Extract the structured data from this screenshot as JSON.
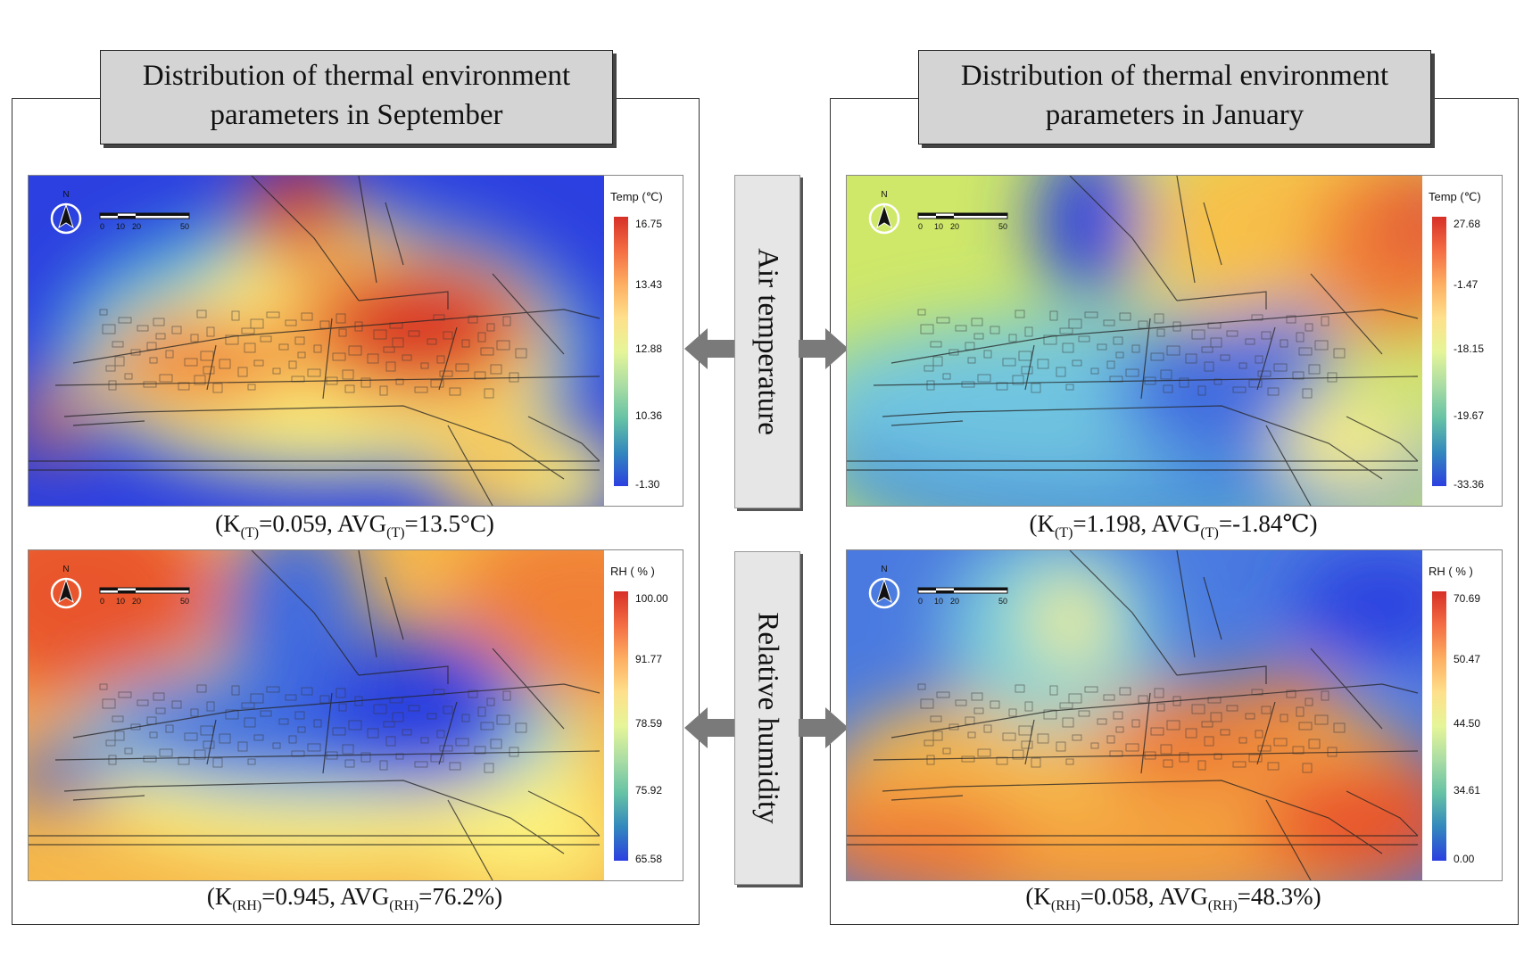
{
  "panels": {
    "september": {
      "title_line1": "Distribution of thermal environment",
      "title_line2": "parameters in September"
    },
    "january": {
      "title_line1": "Distribution of thermal environment",
      "title_line2": "parameters in January"
    }
  },
  "center_labels": {
    "air_temperature": "Air temperature",
    "relative_humidity": "Relative humidity"
  },
  "maps": {
    "sep_temp": {
      "legend_title": "Temp (℃)",
      "ticks": [
        "16.75",
        "13.43",
        "12.88",
        "10.36",
        "-1.30"
      ],
      "caption": {
        "k_sym": "K",
        "k_sub": "(T)",
        "k_val": "=0.059, ",
        "avg_sym": "AVG",
        "avg_sub": "(T)",
        "avg_val": "=13.5°C)"
      }
    },
    "jan_temp": {
      "legend_title": "Temp (℃)",
      "ticks": [
        "27.68",
        "-1.47",
        "-18.15",
        "-19.67",
        "-33.36"
      ],
      "caption": {
        "k_sym": "K",
        "k_sub": "(T)",
        "k_val": "=1.198, ",
        "avg_sym": "AVG",
        "avg_sub": "(T)",
        "avg_val": "=-1.84℃)"
      }
    },
    "sep_rh": {
      "legend_title": "RH ( % )",
      "ticks": [
        "100.00",
        "91.77",
        "78.59",
        "75.92",
        "65.58"
      ],
      "caption": {
        "k_sym": "K",
        "k_sub": "(RH)",
        "k_val": "=0.945, ",
        "avg_sym": "AVG",
        "avg_sub": "(RH)",
        "avg_val": "=76.2%)"
      }
    },
    "jan_rh": {
      "legend_title": "RH ( % )",
      "ticks": [
        "70.69",
        "50.47",
        "44.50",
        "34.61",
        "0.00"
      ],
      "caption": {
        "k_sym": "K",
        "k_sub": "(RH)",
        "k_val": "=0.058, ",
        "avg_sym": "AVG",
        "avg_sub": "(RH)",
        "avg_val": "=48.3%)"
      }
    }
  },
  "north_label": "N",
  "scale_labels": [
    "0",
    "10",
    "20",
    "50"
  ],
  "colors": {
    "high": "#d73027",
    "mid": "#fdf27a",
    "low": "#2c3fe0",
    "cyan": "#4ec9d6"
  }
}
